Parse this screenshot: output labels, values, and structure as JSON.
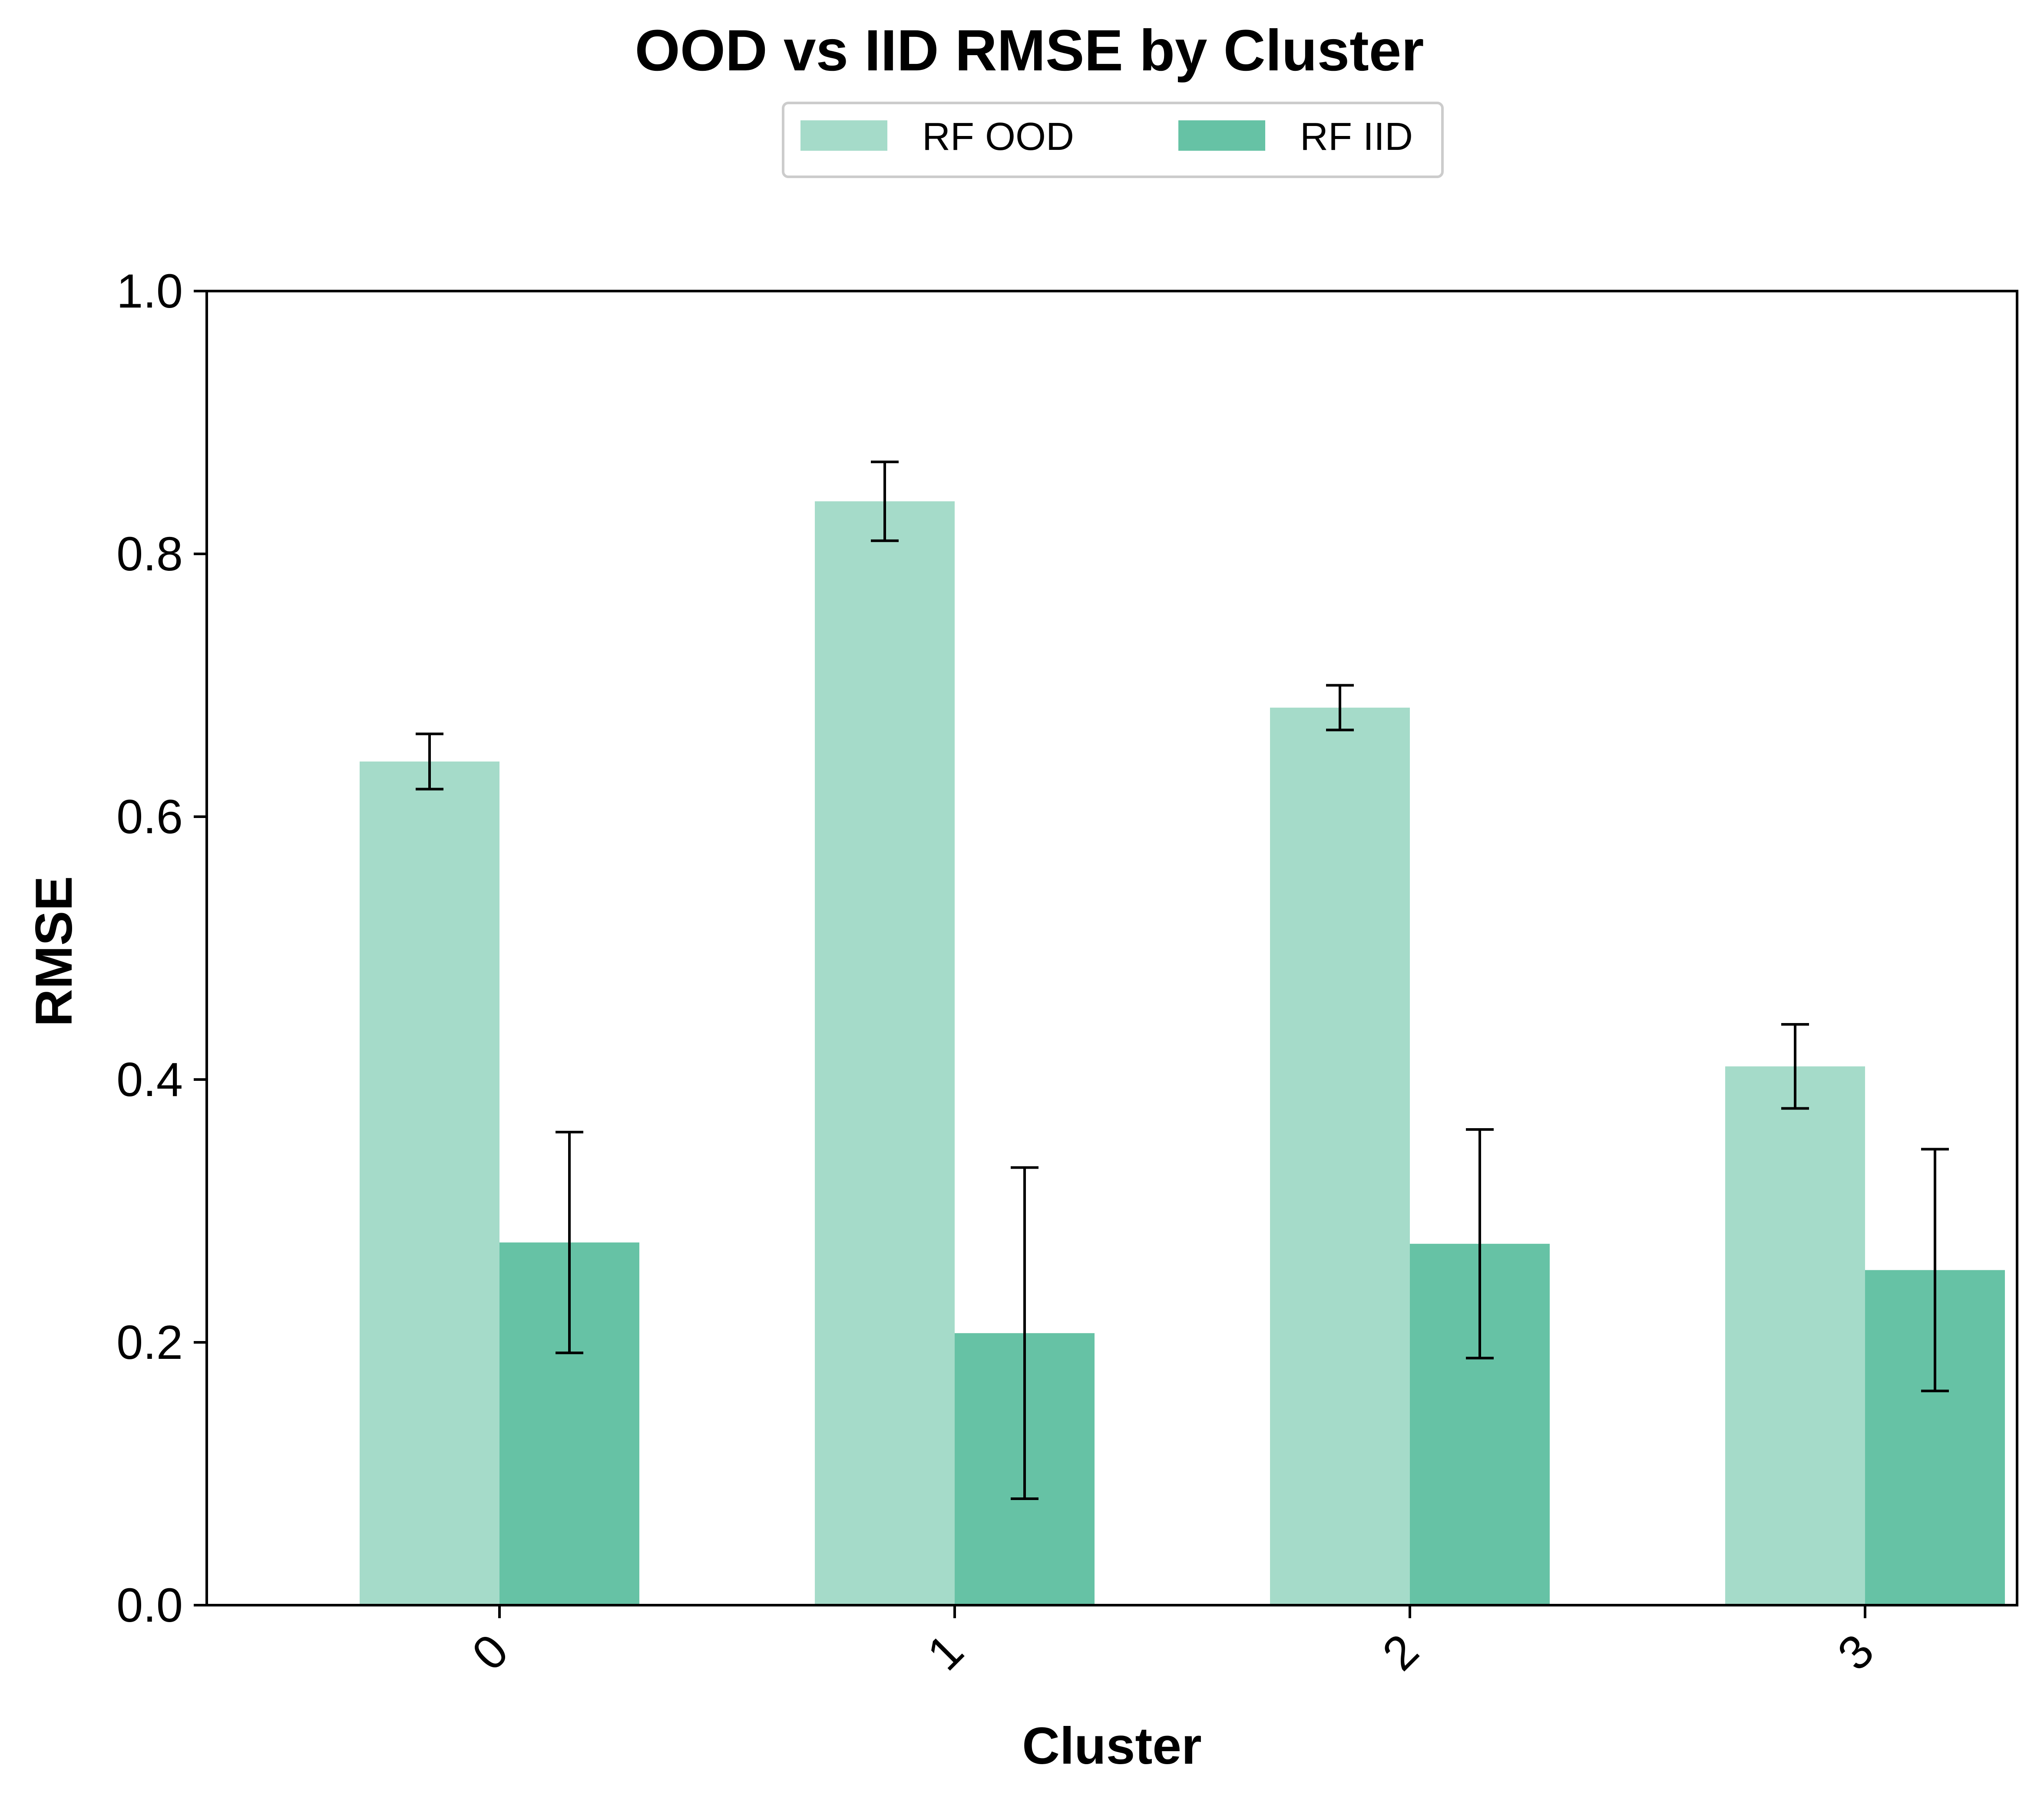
{
  "chart_data": {
    "type": "bar",
    "title": "OOD vs IID RMSE by Cluster",
    "xlabel": "Cluster",
    "ylabel": "RMSE",
    "categories": [
      "0",
      "1",
      "2",
      "3"
    ],
    "ylim": [
      0,
      1.0
    ],
    "yticks": [
      "0.0",
      "0.2",
      "0.4",
      "0.6",
      "0.8",
      "1.0"
    ],
    "grid": false,
    "legend_position": "top-center",
    "series": [
      {
        "name": "RF OOD",
        "color": "#a5dbc9",
        "values": [
          0.642,
          0.84,
          0.683,
          0.41
        ],
        "error": [
          0.021,
          0.03,
          0.017,
          0.032
        ]
      },
      {
        "name": "RF IID",
        "color": "#66c2a5",
        "values": [
          0.276,
          0.207,
          0.275,
          0.255
        ],
        "error": [
          0.084,
          0.126,
          0.087,
          0.092
        ]
      }
    ]
  }
}
